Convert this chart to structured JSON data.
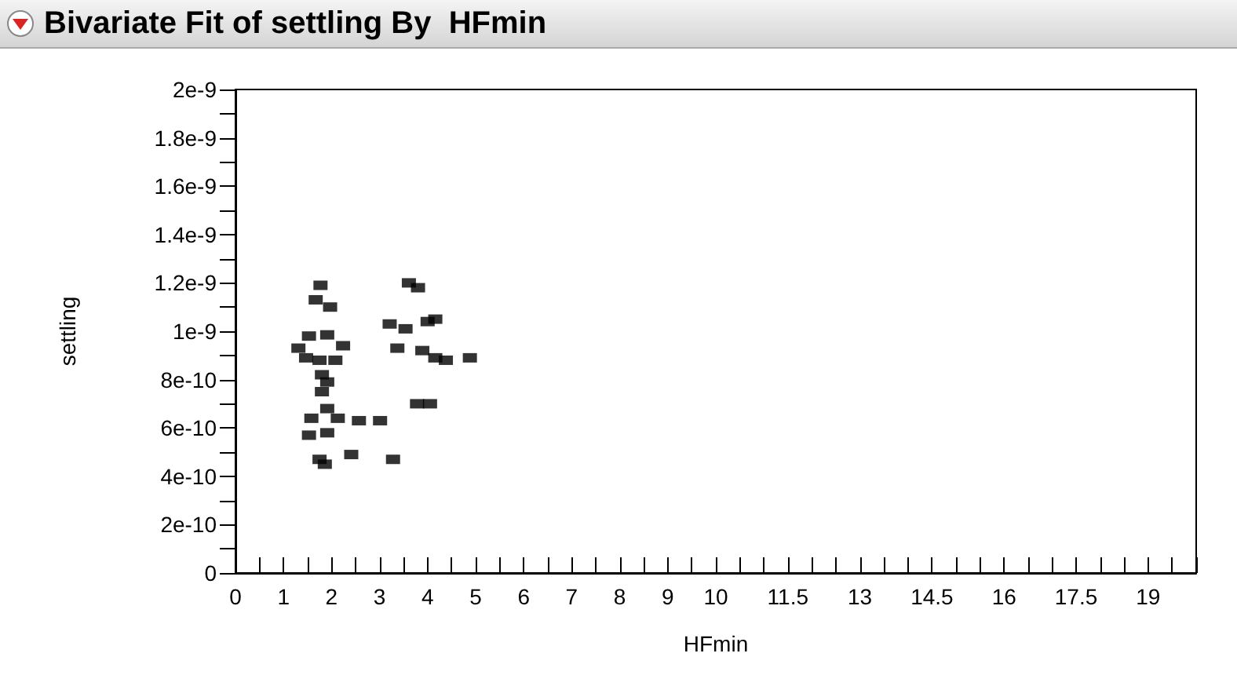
{
  "chart_data": {
    "type": "scatter",
    "title": "Bivariate Fit of settling By  HFmin",
    "xlabel": "HFmin",
    "ylabel": "settling",
    "x": [
      1.77,
      1.67,
      1.97,
      1.31,
      1.53,
      1.91,
      2.24,
      2.08,
      1.75,
      1.47,
      1.8,
      1.91,
      1.8,
      1.91,
      1.58,
      2.13,
      2.57,
      3.01,
      1.53,
      1.91,
      1.75,
      1.86,
      2.41,
      3.28,
      3.61,
      3.8,
      3.21,
      3.54,
      4.0,
      4.16,
      3.37,
      3.89,
      4.16,
      4.38,
      4.88,
      3.78,
      4.05
    ],
    "series": [
      {
        "color": "#000000",
        "values": [
          1.19e-09,
          1.13e-09,
          1.1e-09,
          9.3e-10,
          9.8e-10,
          9.85e-10,
          9.4e-10,
          8.8e-10,
          8.8e-10,
          8.9e-10,
          8.2e-10,
          7.9e-10,
          7.5e-10,
          6.8e-10,
          6.4e-10,
          6.4e-10,
          6.3e-10,
          6.3e-10,
          5.7e-10,
          5.8e-10,
          4.7e-10,
          4.5e-10,
          4.9e-10,
          4.7e-10,
          1.2e-09,
          1.18e-09,
          1.03e-09,
          1.01e-09,
          1.04e-09,
          1.05e-09,
          9.3e-10,
          9.2e-10,
          8.9e-10,
          8.8e-10,
          8.9e-10,
          7e-10,
          7e-10
        ]
      }
    ],
    "xlim": [
      0,
      20
    ],
    "xticks": [
      0,
      {
        "value": 0.5,
        "label": null
      },
      1,
      {
        "value": 1.5,
        "label": null
      },
      2,
      {
        "value": 2.5,
        "label": null
      },
      3,
      {
        "value": 3.5,
        "label": null
      },
      4,
      {
        "value": 4.5,
        "label": null
      },
      5,
      {
        "value": 5.5,
        "label": null
      },
      6,
      {
        "value": 6.5,
        "label": null
      },
      7,
      {
        "value": 7.5,
        "label": null
      },
      8,
      {
        "value": 8.5,
        "label": null
      },
      9,
      {
        "value": 9.5,
        "label": null
      },
      10,
      {
        "value": 10.5,
        "label": null
      },
      {
        "value": 11,
        "label": null
      },
      11.5,
      {
        "value": 12,
        "label": null
      },
      {
        "value": 12.5,
        "label": null
      },
      13,
      {
        "value": 13.5,
        "label": null
      },
      {
        "value": 14,
        "label": null
      },
      14.5,
      {
        "value": 15,
        "label": null
      },
      {
        "value": 15.5,
        "label": null
      },
      16,
      {
        "value": 16.5,
        "label": null
      },
      {
        "value": 17,
        "label": null
      },
      17.5,
      {
        "value": 18,
        "label": null
      },
      {
        "value": 18.5,
        "label": null
      },
      19,
      {
        "value": 19.5,
        "label": null
      },
      {
        "value": 20,
        "label": null
      }
    ],
    "ylim": [
      0,
      2e-09
    ],
    "yticks": [
      {
        "value": 0,
        "label": "0"
      },
      {
        "value": 1e-10,
        "label": null
      },
      {
        "value": 2e-10,
        "label": "2e-10"
      },
      {
        "value": 3e-10,
        "label": null
      },
      {
        "value": 4e-10,
        "label": "4e-10"
      },
      {
        "value": 5e-10,
        "label": null
      },
      {
        "value": 6e-10,
        "label": "6e-10"
      },
      {
        "value": 7e-10,
        "label": null
      },
      {
        "value": 8e-10,
        "label": "8e-10"
      },
      {
        "value": 9e-10,
        "label": null
      },
      {
        "value": 1e-09,
        "label": "1e-9"
      },
      {
        "value": 1.1e-09,
        "label": null
      },
      {
        "value": 1.2e-09,
        "label": "1.2e-9"
      },
      {
        "value": 1.3e-09,
        "label": null
      },
      {
        "value": 1.4e-09,
        "label": "1.4e-9"
      },
      {
        "value": 1.5e-09,
        "label": null
      },
      {
        "value": 1.6e-09,
        "label": "1.6e-9"
      },
      {
        "value": 1.7e-09,
        "label": null
      },
      {
        "value": 1.8e-09,
        "label": "1.8e-9"
      },
      {
        "value": 1.9e-09,
        "label": null
      },
      {
        "value": 2e-09,
        "label": "2e-9"
      }
    ],
    "grid": false,
    "marker": "square"
  }
}
